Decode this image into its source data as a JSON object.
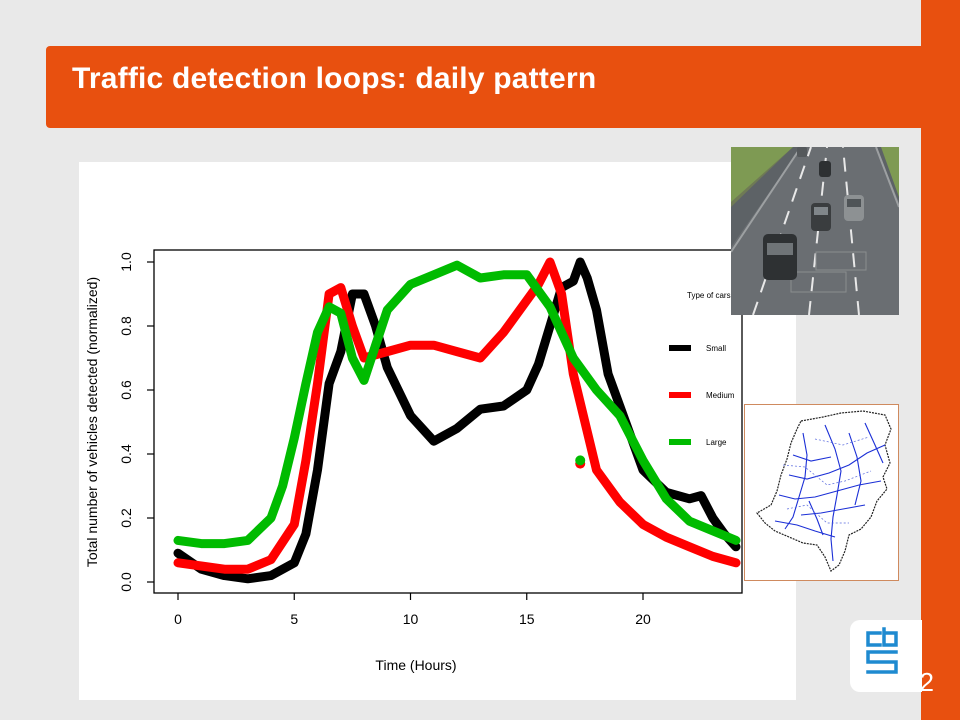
{
  "slide": {
    "title": "Traffic detection loops: daily pattern",
    "page_number": "22",
    "accent_color": "#e8500f",
    "images": {
      "photo": "highway-traffic-photo",
      "map": "netherlands-road-network-map",
      "logo": "cbs-logo-icon"
    }
  },
  "chart_data": {
    "type": "line",
    "title": "",
    "xlabel": "Time (Hours)",
    "ylabel": "Total number of vehicles detected (normalized)",
    "xlim": [
      0,
      24
    ],
    "ylim": [
      0,
      1.0
    ],
    "xticks": [
      "0",
      "5",
      "10",
      "15",
      "20"
    ],
    "xtick_values": [
      0,
      5,
      10,
      15,
      20
    ],
    "yticks": [
      "0.0",
      "0.2",
      "0.4",
      "0.6",
      "0.8",
      "1.0"
    ],
    "ytick_values": [
      0,
      0.2,
      0.4,
      0.6,
      0.8,
      1.0
    ],
    "legend_title": "Type of cars",
    "legend_position": "right",
    "grid": false,
    "series": [
      {
        "name": "Small",
        "color": "#000000",
        "points": [
          [
            0,
            0.09
          ],
          [
            1,
            0.04
          ],
          [
            2,
            0.02
          ],
          [
            3,
            0.01
          ],
          [
            4,
            0.02
          ],
          [
            5,
            0.06
          ],
          [
            5.5,
            0.15
          ],
          [
            6,
            0.35
          ],
          [
            6.5,
            0.62
          ],
          [
            7,
            0.72
          ],
          [
            7.5,
            0.9
          ],
          [
            8,
            0.9
          ],
          [
            8.5,
            0.8
          ],
          [
            9,
            0.67
          ],
          [
            10,
            0.52
          ],
          [
            11,
            0.44
          ],
          [
            12,
            0.48
          ],
          [
            13,
            0.54
          ],
          [
            14,
            0.55
          ],
          [
            15,
            0.6
          ],
          [
            15.5,
            0.68
          ],
          [
            16,
            0.8
          ],
          [
            16.5,
            0.92
          ],
          [
            17,
            0.94
          ],
          [
            17.3,
            1.0
          ],
          [
            17.6,
            0.95
          ],
          [
            18,
            0.85
          ],
          [
            18.5,
            0.65
          ],
          [
            19,
            0.55
          ],
          [
            20,
            0.35
          ],
          [
            21,
            0.28
          ],
          [
            22,
            0.26
          ],
          [
            22.5,
            0.27
          ],
          [
            23,
            0.2
          ],
          [
            23.5,
            0.15
          ],
          [
            24,
            0.11
          ]
        ]
      },
      {
        "name": "Medium",
        "color": "#ff0000",
        "points": [
          [
            0,
            0.06
          ],
          [
            1,
            0.05
          ],
          [
            2,
            0.04
          ],
          [
            3,
            0.04
          ],
          [
            4,
            0.07
          ],
          [
            5,
            0.18
          ],
          [
            5.5,
            0.38
          ],
          [
            6,
            0.62
          ],
          [
            6.5,
            0.9
          ],
          [
            7,
            0.92
          ],
          [
            7.5,
            0.8
          ],
          [
            8,
            0.7
          ],
          [
            9,
            0.72
          ],
          [
            10,
            0.74
          ],
          [
            11,
            0.74
          ],
          [
            12,
            0.72
          ],
          [
            13,
            0.7
          ],
          [
            14,
            0.78
          ],
          [
            15,
            0.88
          ],
          [
            15.5,
            0.93
          ],
          [
            16,
            1.0
          ],
          [
            16.5,
            0.9
          ],
          [
            17,
            0.65
          ],
          [
            17.5,
            0.5
          ],
          [
            18,
            0.35
          ],
          [
            19,
            0.25
          ],
          [
            20,
            0.18
          ],
          [
            21,
            0.14
          ],
          [
            22,
            0.11
          ],
          [
            23,
            0.08
          ],
          [
            24,
            0.06
          ]
        ]
      },
      {
        "name": "Large",
        "color": "#00bb00",
        "points": [
          [
            0,
            0.13
          ],
          [
            1,
            0.12
          ],
          [
            2,
            0.12
          ],
          [
            3,
            0.13
          ],
          [
            4,
            0.2
          ],
          [
            4.5,
            0.3
          ],
          [
            5,
            0.45
          ],
          [
            5.5,
            0.62
          ],
          [
            6,
            0.78
          ],
          [
            6.5,
            0.86
          ],
          [
            7,
            0.84
          ],
          [
            7.5,
            0.7
          ],
          [
            8,
            0.63
          ],
          [
            8.5,
            0.74
          ],
          [
            9,
            0.85
          ],
          [
            10,
            0.93
          ],
          [
            11,
            0.96
          ],
          [
            12,
            0.99
          ],
          [
            13,
            0.95
          ],
          [
            14,
            0.96
          ],
          [
            15,
            0.96
          ],
          [
            16,
            0.86
          ],
          [
            16.5,
            0.78
          ],
          [
            17,
            0.7
          ],
          [
            17.5,
            0.65
          ],
          [
            18,
            0.6
          ],
          [
            19,
            0.52
          ],
          [
            20,
            0.38
          ],
          [
            21,
            0.26
          ],
          [
            22,
            0.19
          ],
          [
            23,
            0.16
          ],
          [
            24,
            0.13
          ]
        ]
      }
    ],
    "outliers": [
      {
        "series": "Medium",
        "x": 17.3,
        "y": 0.37
      },
      {
        "series": "Large",
        "x": 17.3,
        "y": 0.38
      }
    ]
  }
}
